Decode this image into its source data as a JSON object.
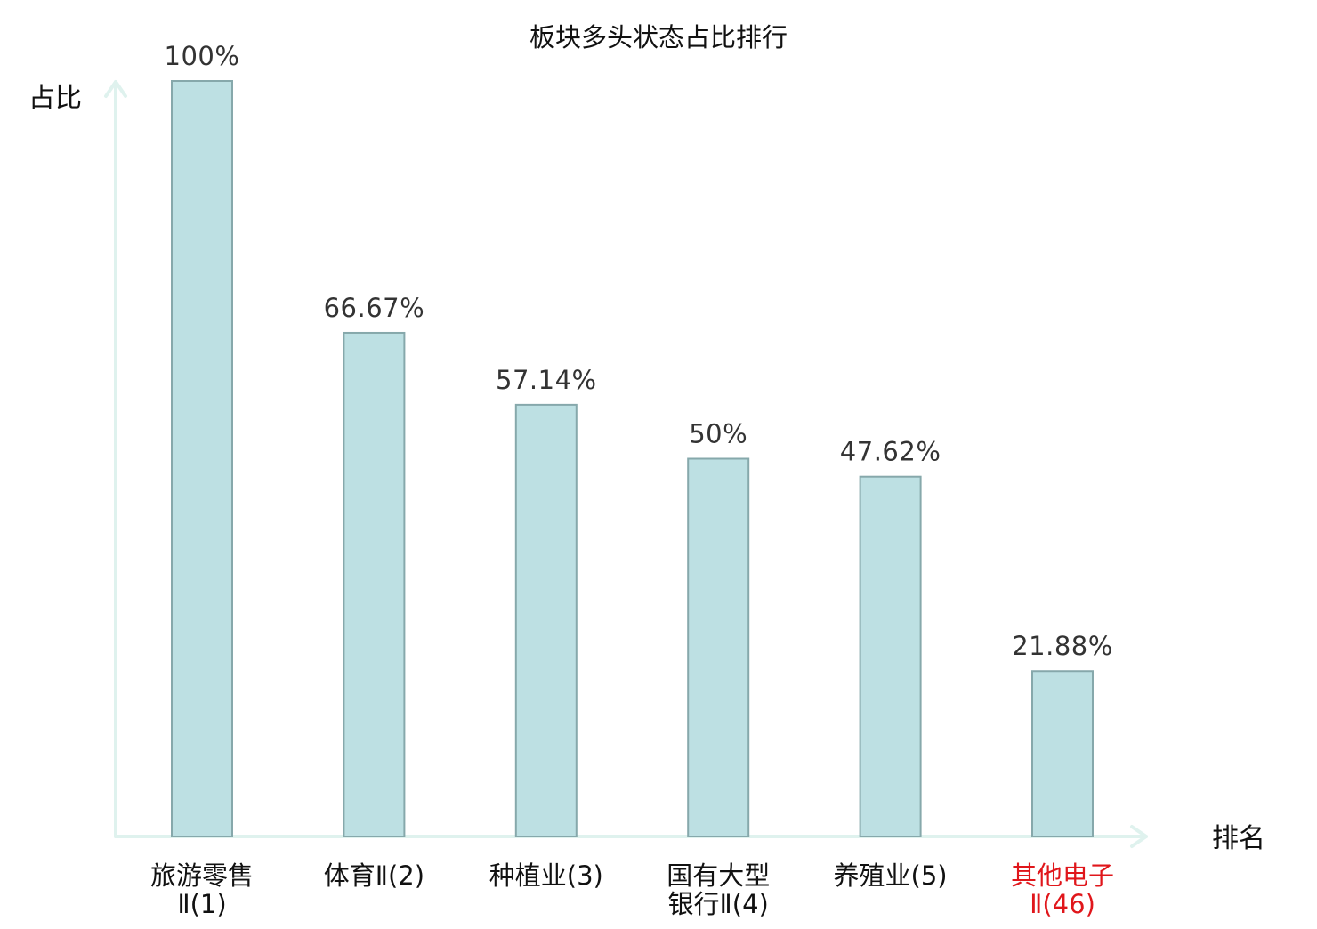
{
  "chart_data": {
    "type": "bar",
    "title": "板块多头状态占比排行",
    "ylabel": "占比",
    "xlabel": "排名",
    "ylim": [
      0,
      100
    ],
    "categories": [
      [
        "旅游零售",
        "Ⅱ(1)"
      ],
      [
        "体育Ⅱ(2)"
      ],
      [
        "种植业(3)"
      ],
      [
        "国有大型",
        "银行Ⅱ(4)"
      ],
      [
        "养殖业(5)"
      ],
      [
        "其他电子",
        "Ⅱ(46)"
      ]
    ],
    "values": [
      100,
      66.67,
      57.14,
      50,
      47.62,
      21.88
    ],
    "value_labels": [
      "100%",
      "66.67%",
      "57.14%",
      "50%",
      "47.62%",
      "21.88%"
    ],
    "highlight_index": 5,
    "grid": false,
    "colors": {
      "bar_fill": "#bde0e3",
      "bar_stroke": "#86a8ab",
      "axis": "#dff2ee",
      "label": "#111111",
      "highlight": "#e0161b"
    }
  }
}
